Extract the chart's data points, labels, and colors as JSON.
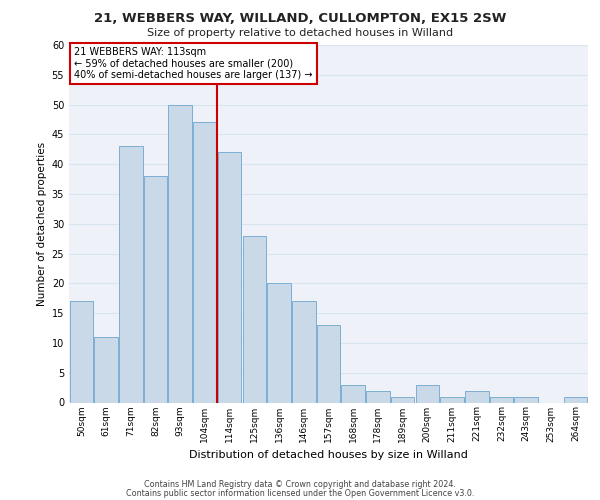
{
  "title_line1": "21, WEBBERS WAY, WILLAND, CULLOMPTON, EX15 2SW",
  "title_line2": "Size of property relative to detached houses in Willand",
  "xlabel": "Distribution of detached houses by size in Willand",
  "ylabel": "Number of detached properties",
  "categories": [
    "50sqm",
    "61sqm",
    "71sqm",
    "82sqm",
    "93sqm",
    "104sqm",
    "114sqm",
    "125sqm",
    "136sqm",
    "146sqm",
    "157sqm",
    "168sqm",
    "178sqm",
    "189sqm",
    "200sqm",
    "211sqm",
    "221sqm",
    "232sqm",
    "243sqm",
    "253sqm",
    "264sqm"
  ],
  "values": [
    17,
    11,
    43,
    38,
    50,
    47,
    42,
    28,
    20,
    17,
    13,
    3,
    2,
    1,
    3,
    1,
    2,
    1,
    1,
    0,
    1
  ],
  "bar_color": "#c9d9e8",
  "bar_edgecolor": "#7bafd4",
  "vline_color": "#cc0000",
  "annotation_text": "21 WEBBERS WAY: 113sqm\n← 59% of detached houses are smaller (200)\n40% of semi-detached houses are larger (137) →",
  "annotation_box_edgecolor": "#cc0000",
  "ylim": [
    0,
    60
  ],
  "yticks": [
    0,
    5,
    10,
    15,
    20,
    25,
    30,
    35,
    40,
    45,
    50,
    55,
    60
  ],
  "grid_color": "#d8e4f0",
  "background_color": "#eef2f8",
  "footer_line1": "Contains HM Land Registry data © Crown copyright and database right 2024.",
  "footer_line2": "Contains public sector information licensed under the Open Government Licence v3.0."
}
